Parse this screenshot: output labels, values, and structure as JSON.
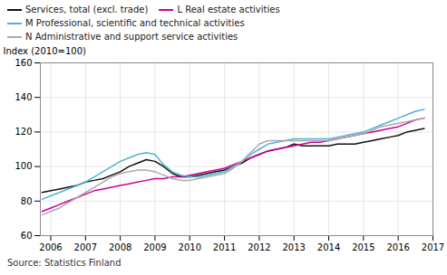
{
  "chart_data": {
    "type": "line",
    "ylabel": "Index (2010=100)",
    "source": "Source: Statistics Finland",
    "xlim": [
      2005.7,
      2017.0
    ],
    "ylim": [
      60,
      160
    ],
    "yticks": [
      60,
      80,
      100,
      120,
      140,
      160
    ],
    "xticks": [
      2006,
      2007,
      2008,
      2009,
      2010,
      2011,
      2012,
      2013,
      2014,
      2015,
      2016,
      2017
    ],
    "grid": true,
    "legend": "upper left",
    "x": [
      2005.75,
      2006.0,
      2006.25,
      2006.5,
      2006.75,
      2007.0,
      2007.25,
      2007.5,
      2007.75,
      2008.0,
      2008.25,
      2008.5,
      2008.75,
      2009.0,
      2009.25,
      2009.5,
      2009.75,
      2010.0,
      2010.25,
      2010.5,
      2010.75,
      2011.0,
      2011.25,
      2011.5,
      2011.75,
      2012.0,
      2012.25,
      2012.5,
      2012.75,
      2013.0,
      2013.25,
      2013.5,
      2013.75,
      2014.0,
      2014.25,
      2014.5,
      2014.75,
      2015.0,
      2015.25,
      2015.5,
      2015.75,
      2016.0,
      2016.25,
      2016.5,
      2016.75
    ],
    "series": [
      {
        "name": "Services, total (excl. trade)",
        "color": "#111111",
        "values": [
          85,
          86,
          87,
          88,
          89,
          91,
          92,
          93,
          95,
          97,
          100,
          102,
          104,
          103,
          100,
          96,
          94,
          94,
          95,
          96,
          97,
          98,
          100,
          102,
          105,
          107,
          109,
          110,
          111,
          113,
          112,
          112,
          112,
          112,
          113,
          113,
          113,
          114,
          115,
          116,
          117,
          118,
          120,
          121,
          122
        ]
      },
      {
        "name": "L Real estate activities",
        "color": "#cc0099",
        "values": [
          74,
          76,
          78,
          80,
          82,
          84,
          86,
          87,
          88,
          89,
          90,
          91,
          92,
          93,
          93,
          94,
          94,
          95,
          96,
          97,
          98,
          99,
          101,
          103,
          105,
          107,
          109,
          110,
          111,
          112,
          113,
          114,
          114,
          115,
          116,
          117,
          118,
          119,
          120,
          121,
          122,
          123,
          125,
          127,
          128
        ]
      },
      {
        "name": "M Professional, scientific and technical activities",
        "color": "#4db3d4",
        "values": [
          81,
          83,
          85,
          87,
          89,
          91,
          94,
          97,
          100,
          103,
          105,
          107,
          108,
          107,
          101,
          97,
          95,
          94,
          94,
          95,
          96,
          97,
          100,
          103,
          107,
          110,
          113,
          114,
          115,
          116,
          116,
          116,
          116,
          116,
          117,
          118,
          119,
          120,
          122,
          124,
          126,
          128,
          130,
          132,
          133
        ]
      },
      {
        "name": "N Administrative and support service activities",
        "color": "#aaaaaa",
        "values": [
          72,
          74,
          76,
          79,
          82,
          85,
          88,
          91,
          94,
          96,
          97,
          98,
          98,
          97,
          95,
          93,
          92,
          92,
          93,
          94,
          95,
          96,
          99,
          103,
          108,
          113,
          115,
          115,
          115,
          115,
          115,
          115,
          115,
          115,
          116,
          117,
          118,
          119,
          121,
          123,
          124,
          125,
          126,
          127,
          128
        ]
      }
    ]
  }
}
